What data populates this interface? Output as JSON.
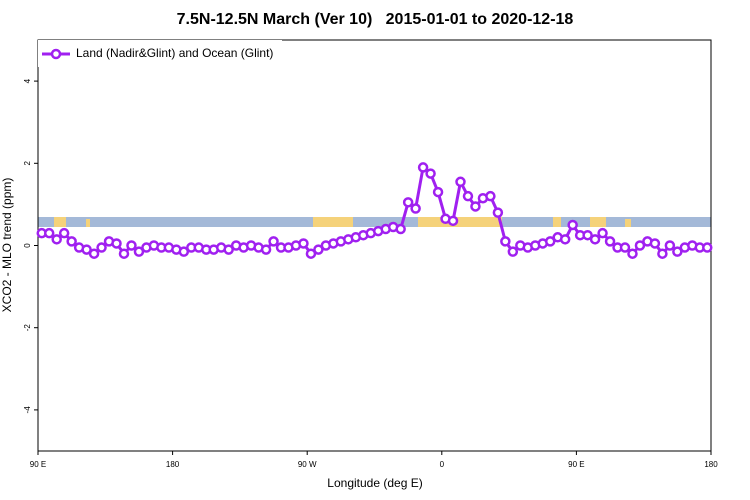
{
  "chart_data": {
    "type": "line",
    "title": "7.5N-12.5N March (Ver 10)   2015-01-01 to 2020-12-18",
    "xlabel": "Longitude (deg E)",
    "ylabel": "XCO2 - MLO trend (ppm)",
    "xlim": [
      90,
      540
    ],
    "ylim": [
      -5,
      5
    ],
    "xticks": [
      {
        "value": 90,
        "label": "90 E"
      },
      180,
      {
        "value": 270,
        "label": "90 W"
      },
      {
        "value": 360,
        "label": "0"
      },
      {
        "value": 450,
        "label": "90 E"
      },
      {
        "value": 540,
        "label": "180"
      }
    ],
    "yticks": [
      -4,
      -2,
      0,
      2,
      4
    ],
    "legend": "upper left",
    "grid": false,
    "x": [
      92.5,
      97.5,
      102.5,
      107.5,
      112.5,
      117.5,
      122.5,
      127.5,
      132.5,
      137.5,
      142.5,
      147.5,
      152.5,
      157.5,
      162.5,
      167.5,
      172.5,
      177.5,
      182.5,
      187.5,
      192.5,
      197.5,
      202.5,
      207.5,
      212.5,
      217.5,
      222.5,
      227.5,
      232.5,
      237.5,
      242.5,
      247.5,
      252.5,
      257.5,
      262.5,
      267.5,
      272.5,
      277.5,
      282.5,
      287.5,
      292.5,
      297.5,
      302.5,
      307.5,
      312.5,
      317.5,
      322.5,
      327.5,
      332.5,
      337.5,
      342.5,
      347.5,
      352.5,
      357.5,
      362.5,
      367.5,
      372.5,
      377.5,
      382.5,
      387.5,
      392.5,
      397.5,
      402.5,
      407.5,
      412.5,
      417.5,
      422.5,
      427.5,
      432.5,
      437.5,
      442.5,
      447.5,
      452.5,
      457.5,
      462.5,
      467.5,
      472.5,
      477.5,
      482.5,
      487.5,
      492.5,
      497.5,
      502.5,
      507.5,
      512.5,
      517.5,
      522.5,
      527.5,
      532.5,
      537.5
    ],
    "series": [
      {
        "name": "Land (Nadir&Glint) and Ocean (Glint)",
        "color": "#a020f0",
        "values": [
          0.3,
          0.3,
          0.15,
          0.3,
          0.1,
          -0.05,
          -0.1,
          -0.2,
          -0.05,
          0.1,
          0.05,
          -0.2,
          0.0,
          -0.15,
          -0.05,
          0.0,
          -0.05,
          -0.05,
          -0.1,
          -0.15,
          -0.05,
          -0.05,
          -0.1,
          -0.1,
          -0.05,
          -0.1,
          0.0,
          -0.05,
          0.0,
          -0.05,
          -0.1,
          0.1,
          -0.05,
          -0.05,
          0.0,
          0.05,
          -0.2,
          -0.1,
          0.0,
          0.05,
          0.1,
          0.15,
          0.2,
          0.25,
          0.3,
          0.35,
          0.4,
          0.45,
          0.4,
          1.05,
          0.9,
          1.9,
          1.75,
          1.3,
          0.65,
          0.6,
          1.55,
          1.2,
          0.95,
          1.15,
          1.2,
          0.8,
          0.1,
          -0.15,
          0.0,
          -0.05,
          0.0,
          0.05,
          0.1,
          0.2,
          0.15,
          0.5,
          0.25,
          0.25,
          0.15,
          0.3,
          0.1,
          -0.05,
          -0.05,
          -0.2,
          0.0,
          0.1,
          0.05,
          -0.2,
          0.0,
          -0.15,
          -0.05,
          0.0,
          -0.05,
          -0.05
        ]
      }
    ]
  }
}
